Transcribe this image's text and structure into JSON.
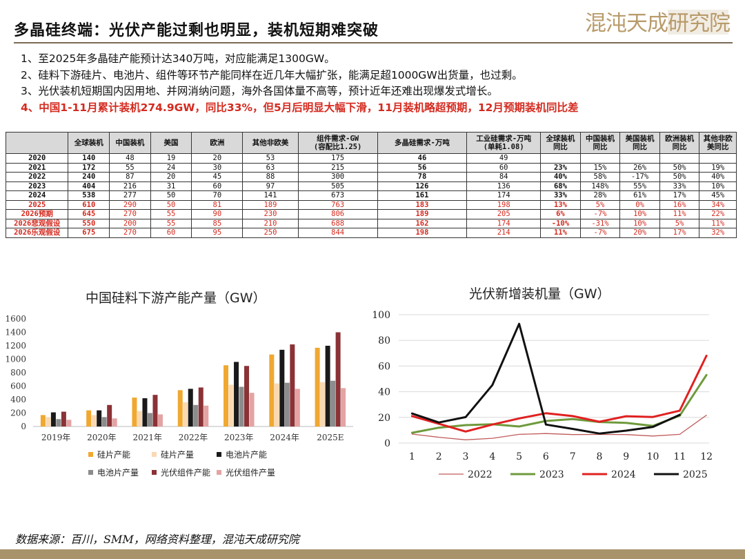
{
  "header": {
    "title": "多晶硅终端：光伏产能过剩也明显，装机短期难突破",
    "brand": "混沌天成研究院"
  },
  "points": [
    "1、至2025年多晶硅产能预计达340万吨，对应能满足1300GW。",
    "2、硅料下游硅片、电池片、组件等环节产能同样在近几年大幅扩张，能满足超1000GW出货量，也过剩。",
    "3、光伏装机短期国内因用地、并网消纳问题，海外各国体量不高等，预计近年还难出现爆发式增长。",
    "4、中国1-11月累计装机274.9GW，同比33%，但5月后明显大幅下滑，11月装机略超预期，12月预期装机同比差"
  ],
  "table": {
    "headers": [
      "",
      "全球装机",
      "中国装机",
      "美国",
      "欧洲",
      "其他非欧美",
      "组件需求-GW\n(容配比1.25)",
      "多晶硅需求-万吨",
      "工业硅需求-万吨\n(单耗1.08)",
      "全球装机\n同比",
      "中国装机\n同比",
      "美国装机\n同比",
      "欧洲装机\n同比",
      "其他非欧\n美同比"
    ],
    "rows": [
      {
        "cells": [
          "2020",
          "140",
          "48",
          "19",
          "20",
          "53",
          "175",
          "46",
          "49",
          "",
          "",
          "",
          "",
          ""
        ],
        "red": false
      },
      {
        "cells": [
          "2021",
          "172",
          "55",
          "24",
          "30",
          "63",
          "215",
          "56",
          "60",
          "23%",
          "15%",
          "26%",
          "50%",
          "19%"
        ],
        "red": false
      },
      {
        "cells": [
          "2022",
          "240",
          "87",
          "20",
          "45",
          "88",
          "300",
          "78",
          "84",
          "40%",
          "58%",
          "-17%",
          "50%",
          "40%"
        ],
        "red": false
      },
      {
        "cells": [
          "2023",
          "404",
          "216",
          "31",
          "60",
          "97",
          "505",
          "126",
          "136",
          "68%",
          "148%",
          "55%",
          "33%",
          "10%"
        ],
        "red": false
      },
      {
        "cells": [
          "2024",
          "538",
          "277",
          "50",
          "70",
          "141",
          "673",
          "161",
          "174",
          "33%",
          "28%",
          "61%",
          "17%",
          "45%"
        ],
        "red": false
      },
      {
        "cells": [
          "2025",
          "610",
          "290",
          "50",
          "81",
          "189",
          "763",
          "183",
          "198",
          "13%",
          "5%",
          "0%",
          "16%",
          "34%"
        ],
        "red": true
      },
      {
        "cells": [
          "2026预期",
          "645",
          "270",
          "55",
          "90",
          "230",
          "806",
          "189",
          "205",
          "6%",
          "-7%",
          "10%",
          "11%",
          "22%"
        ],
        "red": true
      },
      {
        "cells": [
          "2026悲观假设",
          "550",
          "200",
          "55",
          "85",
          "210",
          "688",
          "162",
          "174",
          "-10%",
          "-31%",
          "10%",
          "5%",
          "11%"
        ],
        "red": true
      },
      {
        "cells": [
          "2026乐观假设",
          "675",
          "270",
          "60",
          "95",
          "250",
          "844",
          "198",
          "214",
          "11%",
          "-7%",
          "20%",
          "17%",
          "32%"
        ],
        "red": true
      }
    ]
  },
  "source": "数据来源：百川，SMM，网络资料整理，混沌天成研究院",
  "chart_data": [
    {
      "type": "bar",
      "title": "中国硅料下游产能产量（GW）",
      "categories": [
        "2019年",
        "2020年",
        "2021年",
        "2022年",
        "2023年",
        "2024年",
        "2025E"
      ],
      "ylim": [
        0,
        1600
      ],
      "yticks": [
        0,
        200,
        400,
        600,
        800,
        1000,
        1200,
        1400,
        1600
      ],
      "legend_position": "bottom",
      "series": [
        {
          "name": "硅片产能",
          "color": "#f0a830",
          "values": [
            170,
            240,
            430,
            540,
            910,
            1070,
            1170
          ]
        },
        {
          "name": "硅片产量",
          "color": "#fad9b2",
          "values": [
            140,
            170,
            230,
            360,
            620,
            640,
            660
          ]
        },
        {
          "name": "电池片产能",
          "color": "#1a1a1a",
          "values": [
            210,
            240,
            420,
            560,
            960,
            1140,
            1200
          ]
        },
        {
          "name": "电池片产量",
          "color": "#8c8c8c",
          "values": [
            110,
            140,
            200,
            320,
            590,
            650,
            680
          ]
        },
        {
          "name": "光伏组件产能",
          "color": "#8b3236",
          "values": [
            220,
            320,
            470,
            580,
            900,
            1220,
            1400
          ]
        },
        {
          "name": "光伏组件产量",
          "color": "#e4a3a3",
          "values": [
            100,
            120,
            180,
            310,
            500,
            560,
            570
          ]
        }
      ]
    },
    {
      "type": "line",
      "title": "光伏新增装机量（GW）",
      "x": [
        1,
        2,
        3,
        4,
        5,
        6,
        7,
        8,
        9,
        10,
        11,
        12
      ],
      "ylim": [
        0,
        100
      ],
      "yticks": [
        0,
        20,
        40,
        60,
        80,
        100
      ],
      "legend_position": "bottom",
      "series": [
        {
          "name": "2022",
          "color": "#c05a5a",
          "width": 1.3,
          "values": [
            7,
            4.5,
            2.5,
            3.7,
            6.8,
            7.4,
            6.6,
            6.7,
            6.6,
            5.5,
            6.8,
            21.7
          ]
        },
        {
          "name": "2023",
          "color": "#6e9a3c",
          "width": 3,
          "values": [
            8,
            12,
            14,
            14.6,
            12.9,
            17.2,
            18.7,
            16.4,
            15.7,
            13.4,
            21.3,
            53
          ]
        },
        {
          "name": "2024",
          "color": "#e02020",
          "width": 3,
          "values": [
            21,
            15,
            9,
            14.4,
            19.2,
            23.2,
            21,
            16.6,
            20.9,
            20.3,
            25.2,
            68
          ]
        },
        {
          "name": "2025",
          "color": "#111111",
          "width": 3,
          "values": [
            23,
            16,
            20.2,
            45.2,
            92.9,
            14.4,
            11,
            7.4,
            9.7,
            12.6,
            22,
            null
          ]
        }
      ]
    }
  ]
}
